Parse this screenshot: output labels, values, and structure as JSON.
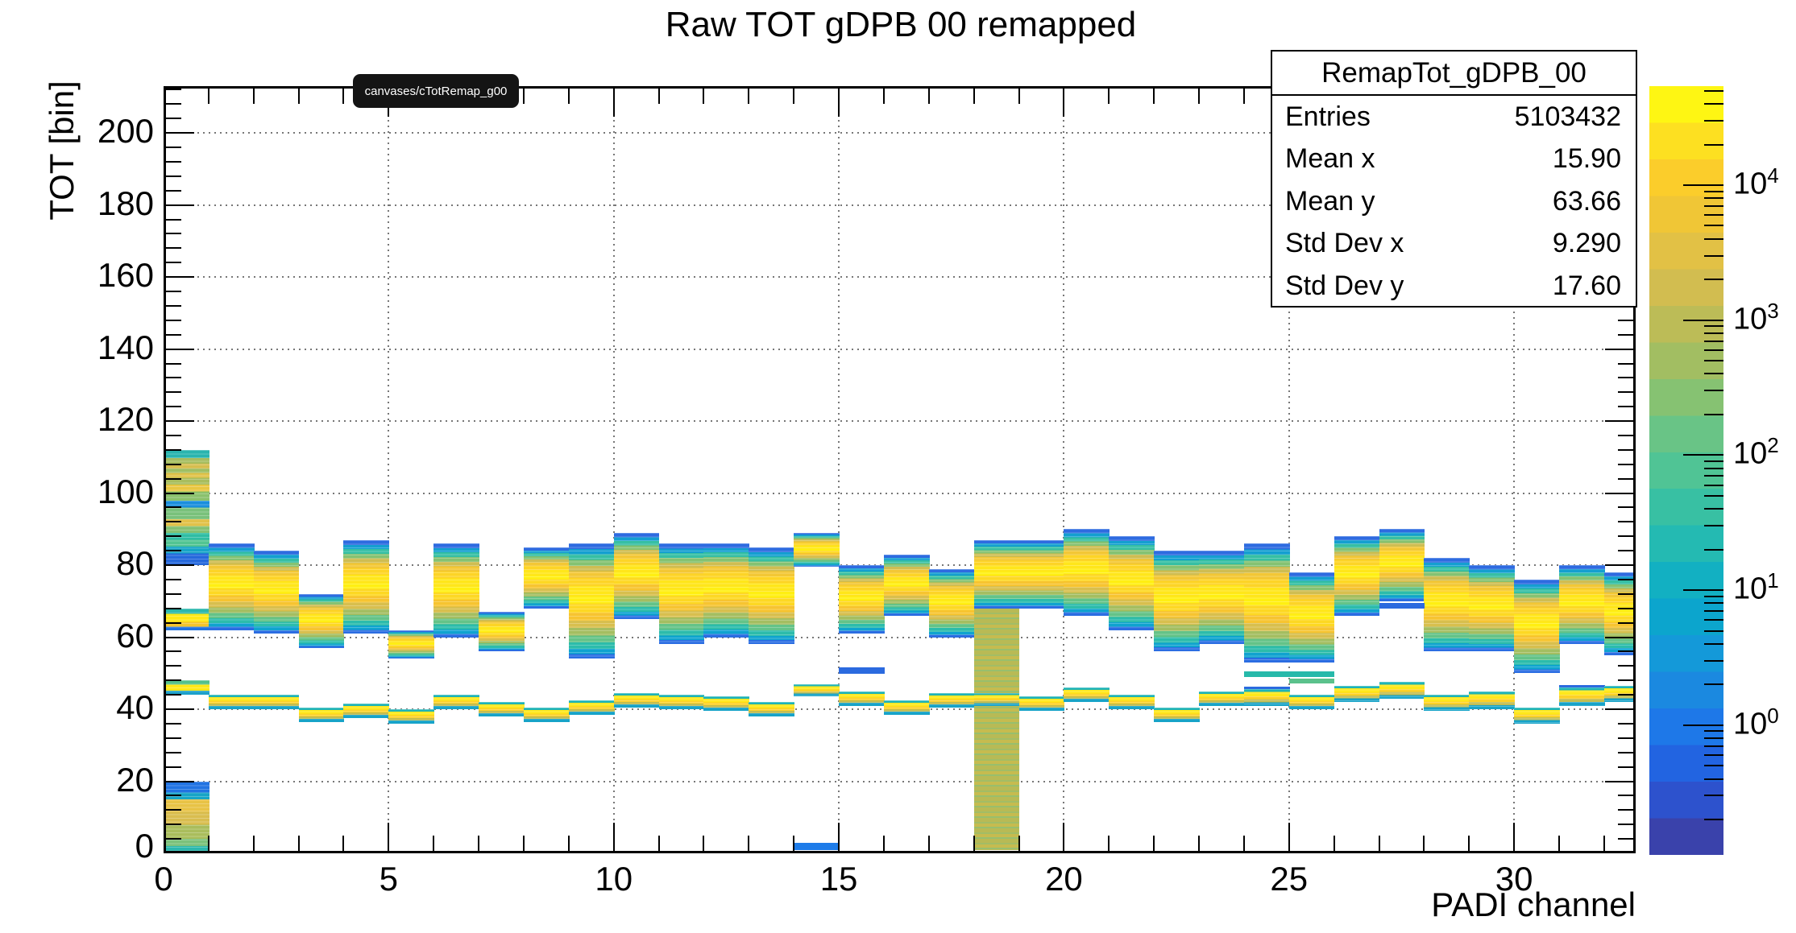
{
  "title": "Raw TOT gDPB 00 remapped",
  "tooltip": {
    "text": "canvases/cTotRemap_g00"
  },
  "stats": {
    "title": "RemapTot_gDPB_00",
    "rows": [
      {
        "label": "Entries",
        "value": "5103432"
      },
      {
        "label": "Mean x",
        "value": "15.90"
      },
      {
        "label": "Mean y",
        "value": "63.66"
      },
      {
        "label": "Std Dev x",
        "value": "9.290"
      },
      {
        "label": "Std Dev y",
        "value": "17.60"
      }
    ]
  },
  "axes": {
    "x": {
      "label": "PADI channel",
      "min": 0,
      "max": 32.7,
      "major_ticks": [
        0,
        5,
        10,
        15,
        20,
        25,
        30
      ],
      "minor_step": 1
    },
    "y": {
      "label": "TOT [bin]",
      "min": 0,
      "max": 213,
      "major_ticks": [
        0,
        20,
        40,
        60,
        80,
        100,
        120,
        140,
        160,
        180,
        200
      ],
      "minor_step": 4
    },
    "z": {
      "scale": "log",
      "base": "10",
      "decades": [
        4,
        3,
        2,
        1,
        0
      ]
    }
  },
  "chart_data": {
    "type": "heatmap",
    "title": "Raw TOT gDPB 00 remapped",
    "xlabel": "PADI channel",
    "ylabel": "TOT [bin]",
    "zscale": "log",
    "xlim": [
      0,
      32.7
    ],
    "ylim": [
      0,
      213
    ],
    "zlim_decades": [
      0,
      4
    ],
    "grid": true,
    "legend_position": "right-colorbar",
    "description": "2D TOT-vs-channel occupancy histogram. Each channel shows a main TOT band near 55-90 bins and a thin secondary band near 36-48 bins. Channel 0 has extra blocks, channel 18 is a noisy channel with a uniform olive column down to 0, channel 14 has a small strip at TOT 1-3.",
    "channels": [
      {
        "ch": 0,
        "main": null,
        "thin": null
      },
      {
        "ch": 1,
        "main": [
          62,
          86
        ],
        "thin": [
          40,
          44
        ]
      },
      {
        "ch": 2,
        "main": [
          61,
          84
        ],
        "thin": [
          40,
          44
        ]
      },
      {
        "ch": 3,
        "main": [
          57,
          72
        ],
        "thin": [
          36.5,
          40.5
        ]
      },
      {
        "ch": 4,
        "main": [
          61,
          87
        ],
        "thin": [
          37.5,
          41.5
        ]
      },
      {
        "ch": 5,
        "main": [
          54,
          62
        ],
        "thin": [
          36,
          40
        ]
      },
      {
        "ch": 6,
        "main": [
          60,
          86
        ],
        "thin": [
          40,
          44
        ]
      },
      {
        "ch": 7,
        "main": [
          56,
          67
        ],
        "thin": [
          38,
          42
        ]
      },
      {
        "ch": 8,
        "main": [
          68,
          85
        ],
        "thin": [
          36.5,
          40.5
        ]
      },
      {
        "ch": 9,
        "main": [
          54,
          86
        ],
        "thin": [
          38.5,
          42.5
        ]
      },
      {
        "ch": 10,
        "main": [
          65,
          89
        ],
        "thin": [
          40.5,
          44.5
        ]
      },
      {
        "ch": 11,
        "main": [
          58,
          86
        ],
        "thin": [
          40,
          44
        ]
      },
      {
        "ch": 12,
        "main": [
          60,
          86
        ],
        "thin": [
          39.5,
          43.5
        ]
      },
      {
        "ch": 13,
        "main": [
          58,
          85
        ],
        "thin": [
          38,
          42
        ]
      },
      {
        "ch": 14,
        "main": [
          79.5,
          89
        ],
        "thin": [
          43.5,
          47
        ]
      },
      {
        "ch": 15,
        "main": [
          61,
          80
        ],
        "thin": [
          41,
          45
        ]
      },
      {
        "ch": 16,
        "main": [
          66,
          83
        ],
        "thin": [
          38.5,
          42.5
        ]
      },
      {
        "ch": 17,
        "main": [
          60,
          79
        ],
        "thin": [
          40.5,
          44.5
        ]
      },
      {
        "ch": 18,
        "main": [
          68,
          87
        ],
        "thin": [
          41,
          44.5
        ]
      },
      {
        "ch": 19,
        "main": [
          68,
          87
        ],
        "thin": [
          39.5,
          43.5
        ]
      },
      {
        "ch": 20,
        "main": [
          66,
          90
        ],
        "thin": [
          42,
          46
        ]
      },
      {
        "ch": 21,
        "main": [
          62,
          88
        ],
        "thin": [
          40,
          44
        ]
      },
      {
        "ch": 22,
        "main": [
          56,
          84
        ],
        "thin": [
          36.5,
          40.5
        ]
      },
      {
        "ch": 23,
        "main": [
          58,
          84
        ],
        "thin": [
          41,
          45
        ]
      },
      {
        "ch": 24,
        "main": [
          53,
          86
        ],
        "thin": [
          41,
          45.5
        ],
        "thin_cap": true
      },
      {
        "ch": 25,
        "main": [
          53,
          78
        ],
        "thin": [
          40,
          44
        ]
      },
      {
        "ch": 26,
        "main": [
          66,
          88
        ],
        "thin": [
          42,
          46.5
        ]
      },
      {
        "ch": 27,
        "main": [
          70,
          90
        ],
        "thin": [
          43,
          47.5
        ]
      },
      {
        "ch": 28,
        "main": [
          56,
          82
        ],
        "thin": [
          39.5,
          44
        ]
      },
      {
        "ch": 29,
        "main": [
          56,
          80
        ],
        "thin": [
          40,
          45
        ]
      },
      {
        "ch": 30,
        "main": [
          50,
          76
        ],
        "thin": [
          36,
          40.5
        ]
      },
      {
        "ch": 31,
        "main": [
          58,
          80
        ],
        "thin": [
          41,
          46
        ],
        "thin_cap": true
      },
      {
        "ch": 32,
        "main": [
          55,
          78
        ],
        "thin": [
          42,
          46.5
        ]
      }
    ],
    "channel0_blocks": [
      {
        "y": [
          80,
          112
        ],
        "stops": [
          [
            0,
            "#2ab4ae"
          ],
          [
            0.07,
            "#a6bd60"
          ],
          [
            0.12,
            "#d6bd4e"
          ],
          [
            0.16,
            "#9fbf63"
          ],
          [
            0.2,
            "#e0c24a"
          ],
          [
            0.24,
            "#a8bd5e"
          ],
          [
            0.3,
            "#e8c641"
          ],
          [
            0.36,
            "#8bc16d"
          ],
          [
            0.44,
            "#1b8fdd"
          ],
          [
            0.5,
            "#79c17b"
          ],
          [
            0.6,
            "#e2c149"
          ],
          [
            0.66,
            "#84c173"
          ],
          [
            0.72,
            "#2fbda4"
          ],
          [
            0.78,
            "#52c492"
          ],
          [
            0.84,
            "#17a5c6"
          ],
          [
            0.9,
            "#2568dc"
          ],
          [
            1,
            "#2568dc"
          ]
        ]
      },
      {
        "y": [
          62,
          68
        ],
        "stops": [
          [
            0,
            "#2bb7ad"
          ],
          [
            0.25,
            "#ffe815"
          ],
          [
            0.62,
            "#f4c42d"
          ],
          [
            0.84,
            "#2173e2"
          ],
          [
            1,
            "#2173e2"
          ]
        ]
      },
      {
        "y": [
          44,
          48
        ],
        "stops": [
          [
            0,
            "#55c18c"
          ],
          [
            0.3,
            "#ffe818"
          ],
          [
            0.72,
            "#1ba0ca"
          ],
          [
            1,
            "#1ba0ca"
          ]
        ]
      },
      {
        "y": [
          0,
          20
        ],
        "stops": [
          [
            0,
            "#2173e2"
          ],
          [
            0.15,
            "#17a5c6"
          ],
          [
            0.25,
            "#e8c345"
          ],
          [
            0.42,
            "#d9bd4f"
          ],
          [
            0.6,
            "#aabd5c"
          ],
          [
            0.8,
            "#7cc17b"
          ],
          [
            0.9,
            "#2bb7ad"
          ],
          [
            1,
            "#2bb7ad"
          ]
        ]
      }
    ],
    "extras": [
      {
        "name": "ch14-bottom-strip",
        "x": [
          14,
          15
        ],
        "y": [
          1,
          3
        ],
        "color": "#1e7ce9"
      },
      {
        "name": "ch18-noise-column",
        "x": [
          18,
          19
        ],
        "y": [
          1,
          68
        ],
        "style": "olive"
      },
      {
        "name": "ch15-blue-line",
        "x": [
          15,
          16
        ],
        "y": [
          49.8,
          51.6
        ],
        "color": "#2b6adf"
      },
      {
        "name": "ch24-26-teal-line",
        "x": [
          24,
          26
        ],
        "y": [
          49,
          50.6
        ],
        "color": "#27b9aa"
      },
      {
        "name": "ch25-26-green-line",
        "x": [
          25,
          26
        ],
        "y": [
          47.2,
          48.5
        ],
        "color": "#5bc28c"
      },
      {
        "name": "ch27-blue-line",
        "x": [
          27,
          28
        ],
        "y": [
          68,
          69.6
        ],
        "color": "#2b6adf"
      }
    ],
    "styles": {
      "main_band_stops": [
        [
          0,
          "#2e6be0"
        ],
        [
          0.05,
          "#149fd0"
        ],
        [
          0.095,
          "#36bfa4"
        ],
        [
          0.145,
          "#85c272"
        ],
        [
          0.195,
          "#cfbd52"
        ],
        [
          0.245,
          "#f3c735"
        ],
        [
          0.3,
          "#fdd426"
        ],
        [
          0.37,
          "#ffe61a"
        ],
        [
          0.46,
          "#ffef12"
        ],
        [
          0.52,
          "#fdd823"
        ],
        [
          0.6,
          "#f7c430"
        ],
        [
          0.67,
          "#d8bf4e"
        ],
        [
          0.735,
          "#a4be61"
        ],
        [
          0.8,
          "#64c388"
        ],
        [
          0.86,
          "#2cbcab"
        ],
        [
          0.915,
          "#0fa3cf"
        ],
        [
          0.96,
          "#2b6de2"
        ],
        [
          1,
          "#2b6de2"
        ]
      ],
      "thin_band_stops": [
        [
          0,
          "#1fb3b6"
        ],
        [
          0.16,
          "#ffe81a"
        ],
        [
          0.42,
          "#fdd126"
        ],
        [
          0.6,
          "#c3bd52"
        ],
        [
          0.78,
          "#17a3c8"
        ],
        [
          1,
          "#17a3c8"
        ]
      ],
      "thin_cap_color": "#2b6adf",
      "olive_stripe_colors": [
        "#b8ba55",
        "#a2bd66",
        "#c6bb4f",
        "#98bf6d"
      ],
      "palette_bottom_to_top": [
        "#3a42ab",
        "#2d52cd",
        "#2264e1",
        "#1e78e8",
        "#1b89e0",
        "#1499d9",
        "#0ca5cd",
        "#12b0c2",
        "#24bab2",
        "#38c0a3",
        "#50c495",
        "#69c486",
        "#86c272",
        "#a2be62",
        "#bcbc57",
        "#d2bd50",
        "#e2c145",
        "#f0c636",
        "#fbcd2b",
        "#fde021",
        "#fef613"
      ],
      "grid_color": "#777",
      "frame_color": "#000000"
    }
  }
}
